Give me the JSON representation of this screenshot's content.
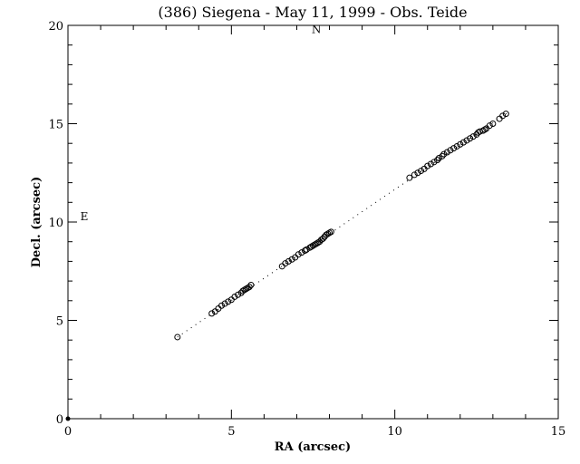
{
  "chart_data": {
    "type": "scatter",
    "title": "(386) Siegena - May 11, 1999 - Obs. Teide",
    "xlabel": "RA (arcsec)",
    "ylabel": "Decl. (arcsec)",
    "xlim": [
      0,
      15
    ],
    "ylim": [
      0,
      20
    ],
    "x_ticks": [
      0,
      5,
      10,
      15
    ],
    "y_ticks": [
      0,
      5,
      10,
      15,
      20
    ],
    "grid": false,
    "annotations": [
      {
        "text": "N",
        "x": 7.6,
        "y": 19.6
      },
      {
        "text": "E",
        "x": 0.5,
        "y": 10.1
      }
    ],
    "origin_point": {
      "x": 0,
      "y": 0
    },
    "fit_line": {
      "x": [
        3.35,
        13.45
      ],
      "y": [
        4.15,
        15.55
      ]
    },
    "series": [
      {
        "marker": "open-circle",
        "x": [
          3.35,
          4.4,
          4.5,
          4.6,
          4.7,
          4.8,
          4.9,
          5.0,
          5.1,
          5.2,
          5.3,
          5.35,
          5.4,
          5.45,
          5.5,
          5.55,
          5.6,
          6.55,
          6.65,
          6.75,
          6.85,
          6.95,
          7.05,
          7.15,
          7.25,
          7.3,
          7.4,
          7.45,
          7.5,
          7.55,
          7.6,
          7.65,
          7.7,
          7.75,
          7.8,
          7.85,
          7.9,
          7.95,
          8.0,
          8.05,
          10.45,
          10.6,
          10.7,
          10.8,
          10.9,
          11.0,
          11.1,
          11.2,
          11.3,
          11.35,
          11.45,
          11.5,
          11.6,
          11.7,
          11.8,
          11.9,
          12.0,
          12.1,
          12.2,
          12.3,
          12.4,
          12.5,
          12.55,
          12.6,
          12.7,
          12.75,
          12.8,
          12.9,
          13.0,
          13.2,
          13.3,
          13.4
        ],
        "y": [
          4.15,
          5.35,
          5.45,
          5.6,
          5.75,
          5.85,
          5.95,
          6.05,
          6.2,
          6.3,
          6.4,
          6.5,
          6.55,
          6.6,
          6.65,
          6.7,
          6.8,
          7.75,
          7.9,
          8.0,
          8.1,
          8.2,
          8.35,
          8.45,
          8.55,
          8.6,
          8.7,
          8.75,
          8.8,
          8.85,
          8.9,
          8.95,
          9.0,
          9.1,
          9.15,
          9.25,
          9.35,
          9.4,
          9.45,
          9.5,
          12.25,
          12.4,
          12.5,
          12.6,
          12.7,
          12.85,
          12.95,
          13.05,
          13.15,
          13.25,
          13.35,
          13.45,
          13.55,
          13.65,
          13.75,
          13.85,
          13.95,
          14.05,
          14.15,
          14.25,
          14.35,
          14.45,
          14.55,
          14.6,
          14.65,
          14.7,
          14.75,
          14.9,
          15.0,
          15.25,
          15.4,
          15.5
        ]
      }
    ]
  }
}
